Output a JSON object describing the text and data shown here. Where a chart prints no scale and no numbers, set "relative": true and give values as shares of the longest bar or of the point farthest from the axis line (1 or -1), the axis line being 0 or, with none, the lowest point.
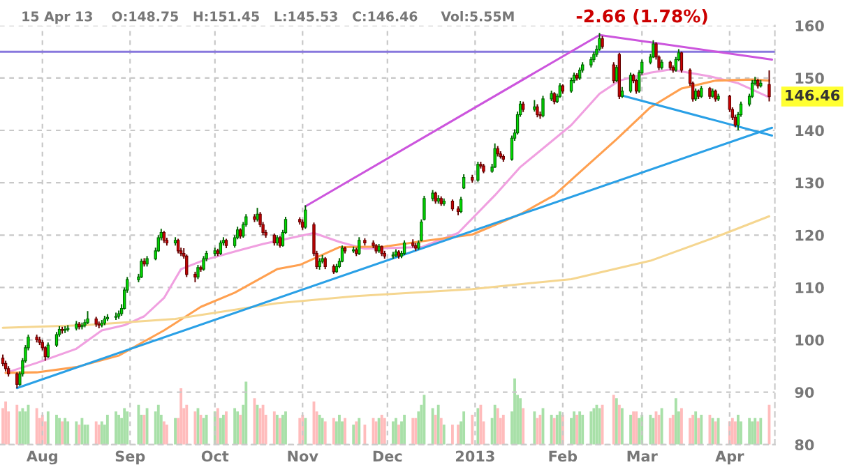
{
  "chart_data": [
    {
      "type": "candlestick",
      "title": "15 Apr 13    O:148.75   H:151.45   L:145.53   C:146.46     Vol:5.55M",
      "subtitle": "-2.66 (1.78%)",
      "x": [
        "2012-07-18",
        "2012-07-19",
        "2012-07-20",
        "2012-07-23",
        "2012-07-24",
        "2012-07-25",
        "2012-07-26",
        "2012-07-27",
        "2012-07-30",
        "2012-07-31",
        "2012-08-01",
        "2012-08-02",
        "2012-08-03",
        "2012-08-06",
        "2012-08-07",
        "2012-08-08",
        "2012-08-09",
        "2012-08-10",
        "2012-08-13",
        "2012-08-14",
        "2012-08-15",
        "2012-08-16",
        "2012-08-17",
        "2012-08-20",
        "2012-08-21",
        "2012-08-22",
        "2012-08-23",
        "2012-08-24",
        "2012-08-27",
        "2012-08-28",
        "2012-08-29",
        "2012-08-30",
        "2012-08-31",
        "2012-09-04",
        "2012-09-05",
        "2012-09-06",
        "2012-09-07",
        "2012-09-10",
        "2012-09-11",
        "2012-09-12",
        "2012-09-13",
        "2012-09-14",
        "2012-09-17",
        "2012-09-18",
        "2012-09-19",
        "2012-09-20",
        "2012-09-21",
        "2012-09-24",
        "2012-09-25",
        "2012-09-26",
        "2012-09-27",
        "2012-09-28",
        "2012-10-01",
        "2012-10-02",
        "2012-10-03",
        "2012-10-04",
        "2012-10-05",
        "2012-10-08",
        "2012-10-09",
        "2012-10-10",
        "2012-10-11",
        "2012-10-12",
        "2012-10-15",
        "2012-10-16",
        "2012-10-17",
        "2012-10-18",
        "2012-10-19",
        "2012-10-22",
        "2012-10-23",
        "2012-10-24",
        "2012-10-25",
        "2012-10-26",
        "2012-10-31",
        "2012-11-01",
        "2012-11-02",
        "2012-11-05",
        "2012-11-06",
        "2012-11-07",
        "2012-11-08",
        "2012-11-09",
        "2012-11-12",
        "2012-11-13",
        "2012-11-14",
        "2012-11-15",
        "2012-11-16",
        "2012-11-19",
        "2012-11-20",
        "2012-11-21",
        "2012-11-23",
        "2012-11-26",
        "2012-11-27",
        "2012-11-28",
        "2012-11-29",
        "2012-11-30",
        "2012-12-03",
        "2012-12-04",
        "2012-12-05",
        "2012-12-06",
        "2012-12-07",
        "2012-12-10",
        "2012-12-11",
        "2012-12-12",
        "2012-12-13",
        "2012-12-14",
        "2012-12-17",
        "2012-12-18",
        "2012-12-19",
        "2012-12-20",
        "2012-12-21",
        "2012-12-24",
        "2012-12-26",
        "2012-12-27",
        "2012-12-28",
        "2012-12-31",
        "2013-01-02",
        "2013-01-03",
        "2013-01-04",
        "2013-01-07",
        "2013-01-08",
        "2013-01-09",
        "2013-01-10",
        "2013-01-11",
        "2013-01-14",
        "2013-01-15",
        "2013-01-16",
        "2013-01-17",
        "2013-01-18",
        "2013-01-22",
        "2013-01-23",
        "2013-01-24",
        "2013-01-25",
        "2013-01-28",
        "2013-01-29",
        "2013-01-30",
        "2013-01-31",
        "2013-02-01",
        "2013-02-04",
        "2013-02-05",
        "2013-02-06",
        "2013-02-07",
        "2013-02-08",
        "2013-02-11",
        "2013-02-12",
        "2013-02-13",
        "2013-02-14",
        "2013-02-15",
        "2013-02-19",
        "2013-02-20",
        "2013-02-21",
        "2013-02-22",
        "2013-02-25",
        "2013-02-26",
        "2013-02-27",
        "2013-02-28",
        "2013-03-01",
        "2013-03-04",
        "2013-03-05",
        "2013-03-06",
        "2013-03-07",
        "2013-03-08",
        "2013-03-11",
        "2013-03-12",
        "2013-03-13",
        "2013-03-14",
        "2013-03-15",
        "2013-03-18",
        "2013-03-19",
        "2013-03-20",
        "2013-03-21",
        "2013-03-22",
        "2013-03-25",
        "2013-03-26",
        "2013-03-27",
        "2013-03-28",
        "2013-04-01",
        "2013-04-02",
        "2013-04-03",
        "2013-04-04",
        "2013-04-05",
        "2013-04-08",
        "2013-04-09",
        "2013-04-10",
        "2013-04-11",
        "2013-04-12",
        "2013-04-15"
      ],
      "ohlc": [
        [
          96.5,
          97.2,
          95,
          95.5
        ],
        [
          95.5,
          96,
          94,
          94.5
        ],
        [
          94.5,
          95,
          93,
          93.5
        ],
        [
          93.5,
          93.8,
          90.8,
          91.5
        ],
        [
          91.5,
          94,
          91.2,
          93.5
        ],
        [
          93.5,
          96.5,
          93,
          96
        ],
        [
          96,
          99,
          95.6,
          98.5
        ],
        [
          98.5,
          101,
          98,
          100.5
        ],
        [
          100.5,
          101,
          99.5,
          100
        ],
        [
          100,
          100.6,
          99,
          99.5
        ],
        [
          99.5,
          100,
          98,
          98.5
        ],
        [
          98.5,
          98.8,
          96,
          96.8
        ],
        [
          96.8,
          99.5,
          96.5,
          99
        ],
        [
          99,
          101.5,
          98.6,
          101
        ],
        [
          101,
          102.6,
          100.6,
          102
        ],
        [
          102,
          102.5,
          101.2,
          101.8
        ],
        [
          101.8,
          102.6,
          101.3,
          102
        ],
        [
          102,
          102.8,
          101.6,
          102.2
        ],
        [
          102.2,
          103.6,
          101.8,
          103
        ],
        [
          103,
          103.4,
          102,
          102.5
        ],
        [
          102.5,
          103.3,
          102,
          102.8
        ],
        [
          102.8,
          103.9,
          102.4,
          103.3
        ],
        [
          103.3,
          105.5,
          103,
          104
        ],
        [
          104,
          104.4,
          102.5,
          103
        ],
        [
          103,
          103.5,
          102.2,
          102.8
        ],
        [
          102.8,
          103.8,
          102.4,
          103.2
        ],
        [
          103.2,
          104.6,
          102.8,
          104
        ],
        [
          104,
          104.9,
          103.6,
          104.3
        ],
        [
          104.3,
          105.2,
          103.8,
          104.5
        ],
        [
          104.5,
          105.6,
          104,
          105
        ],
        [
          105,
          106.8,
          104.6,
          106
        ],
        [
          106,
          110,
          105.8,
          109.5
        ],
        [
          109.5,
          112,
          109,
          111.5
        ],
        [
          111.5,
          112.6,
          111,
          112
        ],
        [
          112,
          115.5,
          111.8,
          115
        ],
        [
          115,
          115.6,
          114,
          114.5
        ],
        [
          114.5,
          116,
          114,
          115.5
        ],
        [
          115.5,
          117.6,
          115.2,
          117
        ],
        [
          117,
          120,
          116.8,
          119.5
        ],
        [
          119.5,
          121.2,
          119,
          120.5
        ],
        [
          120.5,
          120.8,
          118.5,
          119
        ],
        [
          119,
          119.5,
          118,
          118.5
        ],
        [
          118.5,
          119.6,
          118,
          119
        ],
        [
          119,
          119.3,
          116.5,
          117
        ],
        [
          117,
          117.6,
          116,
          116.5
        ],
        [
          116.5,
          117.5,
          115.5,
          116
        ],
        [
          116,
          116.3,
          112,
          112.5
        ],
        [
          112.5,
          113,
          111,
          112
        ],
        [
          112,
          114.3,
          111.6,
          113.8
        ],
        [
          113.8,
          114.2,
          113,
          113.5
        ],
        [
          113.5,
          116,
          113.2,
          115.5
        ],
        [
          115.5,
          117,
          115,
          116.5
        ],
        [
          116.5,
          117.6,
          116,
          117
        ],
        [
          117,
          117.4,
          116,
          116.5
        ],
        [
          116.5,
          119,
          116.2,
          118.5
        ],
        [
          118.5,
          119.6,
          118,
          119
        ],
        [
          119,
          119.3,
          117.5,
          118
        ],
        [
          118,
          120,
          117.6,
          119.5
        ],
        [
          119.5,
          121.6,
          119.2,
          121
        ],
        [
          121,
          121.3,
          119.3,
          119.8
        ],
        [
          119.8,
          122.5,
          119.5,
          122
        ],
        [
          122,
          124,
          121.6,
          123.5
        ],
        [
          123.5,
          124,
          122.5,
          123
        ],
        [
          123,
          125.2,
          122.6,
          124
        ],
        [
          124,
          124.4,
          121.5,
          122
        ],
        [
          122,
          122.5,
          120,
          120.5
        ],
        [
          120.5,
          121,
          119.5,
          120
        ],
        [
          120,
          120.3,
          118,
          118.5
        ],
        [
          118.5,
          120,
          118,
          119.5
        ],
        [
          119.5,
          119.8,
          117.6,
          118
        ],
        [
          118,
          121,
          117.8,
          120.5
        ],
        [
          120.5,
          123.5,
          120.2,
          123
        ],
        [
          123,
          123.4,
          122,
          122.5
        ],
        [
          122.5,
          123,
          121,
          121.5
        ],
        [
          121.5,
          125.7,
          121.2,
          124.8
        ],
        [
          122,
          122.4,
          116,
          116.5
        ],
        [
          116.5,
          117,
          113.5,
          114
        ],
        [
          114,
          115.6,
          113.4,
          115
        ],
        [
          115,
          116.2,
          114.6,
          115.5
        ],
        [
          115.5,
          115.8,
          113.5,
          114
        ],
        [
          114,
          114.4,
          112.6,
          113
        ],
        [
          113,
          114.5,
          112.8,
          114
        ],
        [
          114,
          115.6,
          113.7,
          115
        ],
        [
          115,
          118,
          114.8,
          117.5
        ],
        [
          117.5,
          117.8,
          116.5,
          117
        ],
        [
          117,
          117.8,
          116.6,
          117.2
        ],
        [
          117.2,
          117.6,
          116,
          116.5
        ],
        [
          116.5,
          119.6,
          116.2,
          119
        ],
        [
          119,
          119.4,
          118,
          118.5
        ],
        [
          118.5,
          119,
          117.5,
          118
        ],
        [
          118,
          118.3,
          116.5,
          117
        ],
        [
          117,
          118.3,
          116.6,
          117.8
        ],
        [
          117.8,
          118,
          116,
          116.5
        ],
        [
          116.5,
          117,
          115.5,
          116
        ],
        [
          116,
          116.8,
          115.5,
          116.2
        ],
        [
          116.2,
          117.3,
          115.8,
          116.8
        ],
        [
          116.8,
          117.1,
          115.5,
          116
        ],
        [
          116,
          117,
          115.6,
          116.5
        ],
        [
          116.5,
          119,
          116.2,
          118.5
        ],
        [
          118.5,
          119.2,
          117.6,
          118
        ],
        [
          118,
          118.5,
          117,
          117.5
        ],
        [
          117.5,
          119,
          117.2,
          118.5
        ],
        [
          119,
          123,
          118.8,
          122.5
        ],
        [
          123,
          127.5,
          122.8,
          127
        ],
        [
          127,
          128.6,
          126.5,
          128
        ],
        [
          128,
          128.3,
          126,
          126.5
        ],
        [
          126.5,
          127.6,
          126,
          127
        ],
        [
          127,
          127.4,
          125.6,
          126
        ],
        [
          126,
          127,
          125.6,
          126.5
        ],
        [
          126.5,
          126.8,
          124.6,
          125
        ],
        [
          125,
          125.5,
          123.8,
          124.5
        ],
        [
          124.5,
          127.3,
          124.2,
          126.8
        ],
        [
          129,
          131.6,
          128.8,
          131
        ],
        [
          131,
          131.5,
          130,
          130.5
        ],
        [
          130.5,
          134,
          130.2,
          133.5
        ],
        [
          133.5,
          134,
          132.7,
          133.2
        ],
        [
          133.2,
          133.6,
          131.8,
          132.2
        ],
        [
          132.2,
          133.6,
          131.9,
          133
        ],
        [
          133,
          137.5,
          132.8,
          136.5
        ],
        [
          136.5,
          137,
          135,
          135.5
        ],
        [
          135.5,
          136,
          134.6,
          135
        ],
        [
          135,
          135.4,
          134,
          134.5
        ],
        [
          134.5,
          139,
          134.2,
          138.5
        ],
        [
          138.5,
          140.2,
          138,
          139.5
        ],
        [
          139.5,
          143.6,
          139.2,
          143
        ],
        [
          143,
          145.6,
          142.6,
          145
        ],
        [
          145,
          145.5,
          143.5,
          144
        ],
        [
          144,
          145.8,
          143.6,
          144.5
        ],
        [
          144.5,
          145,
          142.5,
          143
        ],
        [
          143,
          143.6,
          142.2,
          142.8
        ],
        [
          142.8,
          146.6,
          142.5,
          146
        ],
        [
          146,
          147.6,
          145.6,
          147
        ],
        [
          147,
          147.3,
          145,
          145.5
        ],
        [
          145.5,
          147,
          145.2,
          146.5
        ],
        [
          146.5,
          149,
          146.2,
          148.5
        ],
        [
          148.5,
          148.8,
          147,
          147.5
        ],
        [
          147.5,
          150,
          147.2,
          149.5
        ],
        [
          149.5,
          151,
          149,
          150.5
        ],
        [
          150.5,
          150.9,
          149.5,
          150
        ],
        [
          150,
          152,
          149.6,
          151.5
        ],
        [
          151.5,
          153,
          151,
          152.5
        ],
        [
          152.5,
          154,
          152,
          153.5
        ],
        [
          153.5,
          155,
          153,
          154.5
        ],
        [
          154.5,
          156.2,
          154,
          155.5
        ],
        [
          155.5,
          158.6,
          155.2,
          157.5
        ],
        [
          157.5,
          158,
          155.6,
          156
        ],
        [
          152.5,
          153,
          149,
          149.5
        ],
        [
          149.5,
          152.5,
          149.2,
          152
        ],
        [
          154.5,
          154.8,
          146,
          146.5
        ],
        [
          146.5,
          148.3,
          146.2,
          147.5
        ],
        [
          147.5,
          151,
          147.2,
          150.5
        ],
        [
          150.5,
          150.8,
          149,
          149.5
        ],
        [
          149.5,
          149.8,
          147,
          147.5
        ],
        [
          147.5,
          151.5,
          147.2,
          151
        ],
        [
          151,
          153.5,
          150.6,
          153
        ],
        [
          153,
          154.6,
          152.6,
          154
        ],
        [
          154,
          157.2,
          153.8,
          156.5
        ],
        [
          156.5,
          156.8,
          153.5,
          154
        ],
        [
          154,
          154.3,
          151.5,
          152
        ],
        [
          152,
          153.5,
          151.6,
          153
        ],
        [
          153,
          153.3,
          151.5,
          152
        ],
        [
          152,
          152.4,
          151,
          151.5
        ],
        [
          151.5,
          154,
          151.2,
          153.5
        ],
        [
          153.5,
          155.5,
          153.2,
          154.8
        ],
        [
          154.8,
          155,
          151,
          151.5
        ],
        [
          151.5,
          151.8,
          148.5,
          149
        ],
        [
          149,
          149.3,
          145.5,
          146
        ],
        [
          146,
          148,
          145.6,
          147.5
        ],
        [
          147.5,
          147.8,
          146,
          146.5
        ],
        [
          146.5,
          148.5,
          146.2,
          148
        ],
        [
          148,
          148.3,
          146,
          146.5
        ],
        [
          146.5,
          148,
          146.2,
          147.5
        ],
        [
          147.5,
          147.8,
          145.5,
          146
        ],
        [
          146,
          147,
          145.6,
          146.5
        ],
        [
          146.5,
          146.8,
          143.5,
          144
        ],
        [
          144,
          144.4,
          142,
          142.5
        ],
        [
          142.5,
          143,
          140.6,
          141
        ],
        [
          141,
          143.5,
          140,
          143
        ],
        [
          143,
          145.5,
          142.6,
          145
        ],
        [
          145,
          147,
          144.6,
          146.5
        ],
        [
          146.5,
          149.6,
          146.2,
          149
        ],
        [
          149,
          150.2,
          148.6,
          149.5
        ],
        [
          149.5,
          149.8,
          148,
          148.5
        ],
        [
          148.5,
          149.6,
          148.2,
          149
        ],
        [
          148.75,
          151.45,
          145.53,
          146.46
        ]
      ],
      "series": [
        {
          "type": "line",
          "color": "#f0a0e0",
          "x": [
            "2012-07-19",
            "2012-07-30",
            "2012-08-13",
            "2012-08-22",
            "2012-08-30",
            "2012-09-06",
            "2012-09-13",
            "2012-09-19",
            "2012-09-27",
            "2012-10-09",
            "2012-10-18",
            "2012-11-05",
            "2012-11-14",
            "2012-11-23",
            "2012-12-13",
            "2012-12-26",
            "2013-01-08",
            "2013-01-17",
            "2013-02-04",
            "2013-02-14",
            "2013-02-21",
            "2013-03-04",
            "2013-03-11",
            "2013-03-25",
            "2013-04-04",
            "2013-04-15"
          ],
          "values": [
            93.7,
            95.6,
            98.3,
            101.8,
            102.8,
            104.5,
            108,
            113.5,
            115.2,
            117,
            118.3,
            120.4,
            118.7,
            117.4,
            117.7,
            120.4,
            127.6,
            133,
            141,
            147,
            149.5,
            151,
            151.6,
            150.3,
            149,
            146.3
          ]
        },
        {
          "type": "line",
          "color": "#ffa050",
          "x": [
            "2012-07-19",
            "2012-07-30",
            "2012-08-13",
            "2012-08-28",
            "2012-09-13",
            "2012-09-26",
            "2012-10-08",
            "2012-10-23",
            "2012-10-31",
            "2012-11-14",
            "2012-11-30",
            "2012-12-13",
            "2012-12-31",
            "2013-01-17",
            "2013-01-29",
            "2013-02-07",
            "2013-02-20",
            "2013-03-04",
            "2013-03-15",
            "2013-03-27",
            "2013-04-09",
            "2013-04-15"
          ],
          "values": [
            93.7,
            93.8,
            94.8,
            97,
            101.8,
            106.3,
            109,
            113.5,
            114.3,
            117.7,
            117.8,
            118.8,
            120.1,
            124,
            127.6,
            132,
            138.3,
            144.4,
            148,
            149.5,
            149.7,
            149.5
          ]
        },
        {
          "type": "line",
          "color": "#f5d690",
          "x": [
            "2012-07-18",
            "2012-08-16",
            "2012-09-17",
            "2012-10-23",
            "2012-11-21",
            "2012-12-31",
            "2013-02-04",
            "2013-03-04",
            "2013-03-27",
            "2013-04-15"
          ],
          "values": [
            102.3,
            102.8,
            104,
            107,
            108.4,
            109.7,
            111.6,
            115.1,
            119.6,
            123.6
          ]
        },
        {
          "type": "line",
          "color": "#cc55dd",
          "x": [
            "2012-11-02",
            "2013-02-14"
          ],
          "values": [
            125.5,
            158.2
          ]
        },
        {
          "type": "line",
          "color": "#cc55dd",
          "x": [
            "2013-02-14",
            "2013-04-16"
          ],
          "values": [
            158.2,
            153.5
          ]
        },
        {
          "type": "line",
          "color": "#2aa0e6",
          "x": [
            "2012-07-23",
            "2013-04-16"
          ],
          "values": [
            90.8,
            140.5
          ]
        },
        {
          "type": "line",
          "color": "#2aa0e6",
          "x": [
            "2013-02-21",
            "2013-04-16"
          ],
          "values": [
            146.8,
            139
          ]
        }
      ],
      "ref_lines": [
        {
          "axis": "y",
          "value": 155,
          "color": "#8877dd"
        }
      ],
      "annotations": [
        {
          "text": "146.46",
          "x": "2013-04-15",
          "y": 146.46
        }
      ],
      "xlim": [
        "2012-07-17",
        "2013-04-17"
      ],
      "xticks": [
        {
          "value": "2012-08-01",
          "label": "Aug"
        },
        {
          "value": "2012-09-01",
          "label": "Sep"
        },
        {
          "value": "2012-10-01",
          "label": "Oct"
        },
        {
          "value": "2012-11-01",
          "label": "Nov"
        },
        {
          "value": "2012-12-01",
          "label": "Dec"
        },
        {
          "value": "2013-01-01",
          "label": "2013"
        },
        {
          "value": "2013-02-01",
          "label": "Feb"
        },
        {
          "value": "2013-03-01",
          "label": "Mar"
        },
        {
          "value": "2013-04-01",
          "label": "Apr"
        }
      ],
      "ylim": [
        80,
        160
      ],
      "yticks": [
        80,
        90,
        100,
        110,
        120,
        130,
        140,
        150,
        160
      ],
      "grid": true
    },
    {
      "type": "bar",
      "relative": true,
      "tick_labels": false,
      "xlim": [
        "2012-07-17",
        "2013-04-17"
      ],
      "x": [
        "2012-07-18",
        "2012-07-19",
        "2012-07-20",
        "2012-07-23",
        "2012-07-24",
        "2012-07-25",
        "2012-07-26",
        "2012-07-27",
        "2012-07-30",
        "2012-07-31",
        "2012-08-01",
        "2012-08-02",
        "2012-08-03",
        "2012-08-06",
        "2012-08-07",
        "2012-08-08",
        "2012-08-09",
        "2012-08-10",
        "2012-08-13",
        "2012-08-14",
        "2012-08-15",
        "2012-08-16",
        "2012-08-17",
        "2012-08-20",
        "2012-08-21",
        "2012-08-22",
        "2012-08-23",
        "2012-08-24",
        "2012-08-27",
        "2012-08-28",
        "2012-08-29",
        "2012-08-30",
        "2012-08-31",
        "2012-09-04",
        "2012-09-05",
        "2012-09-06",
        "2012-09-07",
        "2012-09-10",
        "2012-09-11",
        "2012-09-12",
        "2012-09-13",
        "2012-09-14",
        "2012-09-17",
        "2012-09-18",
        "2012-09-19",
        "2012-09-20",
        "2012-09-21",
        "2012-09-24",
        "2012-09-25",
        "2012-09-26",
        "2012-09-27",
        "2012-09-28",
        "2012-10-01",
        "2012-10-02",
        "2012-10-03",
        "2012-10-04",
        "2012-10-05",
        "2012-10-08",
        "2012-10-09",
        "2012-10-10",
        "2012-10-11",
        "2012-10-12",
        "2012-10-15",
        "2012-10-16",
        "2012-10-17",
        "2012-10-18",
        "2012-10-19",
        "2012-10-22",
        "2012-10-23",
        "2012-10-24",
        "2012-10-25",
        "2012-10-26",
        "2012-10-31",
        "2012-11-01",
        "2012-11-02",
        "2012-11-05",
        "2012-11-06",
        "2012-11-07",
        "2012-11-08",
        "2012-11-09",
        "2012-11-12",
        "2012-11-13",
        "2012-11-14",
        "2012-11-15",
        "2012-11-16",
        "2012-11-19",
        "2012-11-20",
        "2012-11-21",
        "2012-11-23",
        "2012-11-26",
        "2012-11-27",
        "2012-11-28",
        "2012-11-29",
        "2012-11-30",
        "2012-12-03",
        "2012-12-04",
        "2012-12-05",
        "2012-12-06",
        "2012-12-07",
        "2012-12-10",
        "2012-12-11",
        "2012-12-12",
        "2012-12-13",
        "2012-12-14",
        "2012-12-17",
        "2012-12-18",
        "2012-12-19",
        "2012-12-20",
        "2012-12-21",
        "2012-12-24",
        "2012-12-26",
        "2012-12-27",
        "2012-12-28",
        "2012-12-31",
        "2013-01-02",
        "2013-01-03",
        "2013-01-04",
        "2013-01-07",
        "2013-01-08",
        "2013-01-09",
        "2013-01-10",
        "2013-01-11",
        "2013-01-14",
        "2013-01-15",
        "2013-01-16",
        "2013-01-17",
        "2013-01-18",
        "2013-01-22",
        "2013-01-23",
        "2013-01-24",
        "2013-01-25",
        "2013-01-28",
        "2013-01-29",
        "2013-01-30",
        "2013-01-31",
        "2013-02-01",
        "2013-02-04",
        "2013-02-05",
        "2013-02-06",
        "2013-02-07",
        "2013-02-08",
        "2013-02-11",
        "2013-02-12",
        "2013-02-13",
        "2013-02-14",
        "2013-02-15",
        "2013-02-19",
        "2013-02-20",
        "2013-02-21",
        "2013-02-22",
        "2013-02-25",
        "2013-02-26",
        "2013-02-27",
        "2013-02-28",
        "2013-03-01",
        "2013-03-04",
        "2013-03-05",
        "2013-03-06",
        "2013-03-07",
        "2013-03-08",
        "2013-03-11",
        "2013-03-12",
        "2013-03-13",
        "2013-03-14",
        "2013-03-15",
        "2013-03-18",
        "2013-03-19",
        "2013-03-20",
        "2013-03-21",
        "2013-03-22",
        "2013-03-25",
        "2013-03-26",
        "2013-03-27",
        "2013-03-28",
        "2013-04-01",
        "2013-04-02",
        "2013-04-03",
        "2013-04-04",
        "2013-04-05",
        "2013-04-08",
        "2013-04-09",
        "2013-04-10",
        "2013-04-11",
        "2013-04-12",
        "2013-04-15"
      ],
      "values": [
        0.55,
        0.65,
        0.5,
        0.6,
        0.5,
        0.55,
        0.5,
        0.6,
        0.55,
        0.4,
        0.45,
        0.35,
        0.5,
        0.45,
        0.4,
        0.35,
        0.4,
        0.35,
        0.35,
        0.3,
        0.4,
        0.3,
        0.3,
        0.35,
        0.3,
        0.35,
        0.3,
        0.45,
        0.5,
        0.45,
        0.4,
        0.55,
        0.5,
        0.6,
        0.45,
        0.45,
        0.55,
        0.5,
        0.6,
        0.45,
        0.35,
        0.3,
        0.4,
        0.4,
        0.85,
        0.55,
        0.6,
        0.5,
        0.55,
        0.45,
        0.4,
        0.45,
        0.5,
        0.55,
        0.4,
        0.45,
        0.5,
        0.55,
        0.5,
        0.45,
        0.6,
        0.95,
        0.7,
        0.6,
        0.55,
        0.6,
        0.45,
        0.5,
        0.45,
        0.4,
        0.45,
        0.5,
        0.4,
        0.45,
        0.4,
        0.65,
        0.5,
        0.45,
        0.4,
        0.35,
        0.4,
        0.35,
        0.45,
        0.35,
        0.4,
        0.3,
        0.35,
        0.4,
        0.3,
        0.4,
        0.35,
        0.4,
        0.45,
        0.4,
        0.35,
        0.4,
        0.3,
        0.35,
        0.45,
        0.4,
        0.4,
        0.5,
        0.6,
        0.75,
        0.55,
        0.45,
        0.6,
        0.4,
        0.3,
        0.3,
        0.3,
        0.35,
        0.5,
        0.45,
        0.55,
        0.6,
        0.35,
        0.4,
        0.6,
        0.55,
        0.4,
        0.45,
        0.5,
        1.0,
        0.75,
        0.7,
        0.55,
        0.5,
        0.4,
        0.45,
        0.55,
        0.45,
        0.4,
        0.45,
        0.5,
        0.45,
        0.4,
        0.5,
        0.45,
        0.5,
        0.45,
        0.5,
        0.55,
        0.6,
        0.55,
        0.6,
        0.75,
        0.7,
        0.6,
        0.55,
        0.45,
        0.5,
        0.5,
        0.4,
        0.45,
        0.45,
        0.4,
        0.5,
        0.45,
        0.55,
        0.4,
        0.45,
        0.7,
        0.5,
        0.55,
        0.4,
        0.45,
        0.5,
        0.4,
        0.45,
        0.45,
        0.4,
        0.35,
        0.4,
        0.35,
        0.4,
        0.35,
        0.45,
        0.35,
        0.4,
        0.35,
        0.4,
        0.35,
        0.4,
        0.6
      ],
      "colors": [
        "#ffbcbc",
        "#ffbcbc",
        "#ffbcbc",
        "#ffbcbc",
        "#a8e0a8",
        "#a8e0a8",
        "#a8e0a8",
        "#a8e0a8",
        "#ffbcbc",
        "#ffbcbc",
        "#ffbcbc",
        "#ffbcbc",
        "#a8e0a8",
        "#a8e0a8",
        "#a8e0a8",
        "#ffbcbc",
        "#a8e0a8",
        "#a8e0a8",
        "#a8e0a8",
        "#ffbcbc",
        "#a8e0a8",
        "#a8e0a8",
        "#a8e0a8",
        "#ffbcbc",
        "#ffbcbc",
        "#a8e0a8",
        "#a8e0a8",
        "#a8e0a8",
        "#a8e0a8",
        "#a8e0a8",
        "#a8e0a8",
        "#a8e0a8",
        "#a8e0a8",
        "#a8e0a8",
        "#a8e0a8",
        "#ffbcbc",
        "#a8e0a8",
        "#a8e0a8",
        "#a8e0a8",
        "#a8e0a8",
        "#ffbcbc",
        "#ffbcbc",
        "#a8e0a8",
        "#ffbcbc",
        "#ffbcbc",
        "#ffbcbc",
        "#ffbcbc",
        "#ffbcbc",
        "#a8e0a8",
        "#ffbcbc",
        "#a8e0a8",
        "#a8e0a8",
        "#a8e0a8",
        "#ffbcbc",
        "#a8e0a8",
        "#a8e0a8",
        "#ffbcbc",
        "#a8e0a8",
        "#a8e0a8",
        "#ffbcbc",
        "#a8e0a8",
        "#a8e0a8",
        "#ffbcbc",
        "#a8e0a8",
        "#ffbcbc",
        "#ffbcbc",
        "#ffbcbc",
        "#ffbcbc",
        "#a8e0a8",
        "#ffbcbc",
        "#a8e0a8",
        "#a8e0a8",
        "#ffbcbc",
        "#ffbcbc",
        "#a8e0a8",
        "#ffbcbc",
        "#ffbcbc",
        "#a8e0a8",
        "#a8e0a8",
        "#ffbcbc",
        "#ffbcbc",
        "#a8e0a8",
        "#a8e0a8",
        "#a8e0a8",
        "#ffbcbc",
        "#a8e0a8",
        "#ffbcbc",
        "#a8e0a8",
        "#ffbcbc",
        "#ffbcbc",
        "#ffbcbc",
        "#a8e0a8",
        "#ffbcbc",
        "#ffbcbc",
        "#a8e0a8",
        "#a8e0a8",
        "#ffbcbc",
        "#a8e0a8",
        "#a8e0a8",
        "#ffbcbc",
        "#ffbcbc",
        "#a8e0a8",
        "#a8e0a8",
        "#a8e0a8",
        "#a8e0a8",
        "#ffbcbc",
        "#a8e0a8",
        "#ffbcbc",
        "#a8e0a8",
        "#ffbcbc",
        "#ffbcbc",
        "#a8e0a8",
        "#a8e0a8",
        "#ffbcbc",
        "#a8e0a8",
        "#ffbcbc",
        "#ffbcbc",
        "#a8e0a8",
        "#a8e0a8",
        "#ffbcbc",
        "#ffbcbc",
        "#ffbcbc",
        "#a8e0a8",
        "#a8e0a8",
        "#a8e0a8",
        "#a8e0a8",
        "#ffbcbc",
        "#a8e0a8",
        "#ffbcbc",
        "#ffbcbc",
        "#a8e0a8",
        "#a8e0a8",
        "#ffbcbc",
        "#a8e0a8",
        "#a8e0a8",
        "#ffbcbc",
        "#a8e0a8",
        "#a8e0a8",
        "#ffbcbc",
        "#a8e0a8",
        "#a8e0a8",
        "#a8e0a8",
        "#a8e0a8",
        "#a8e0a8",
        "#a8e0a8",
        "#ffbcbc",
        "#ffbcbc",
        "#a8e0a8",
        "#ffbcbc",
        "#a8e0a8",
        "#a8e0a8",
        "#ffbcbc",
        "#ffbcbc",
        "#a8e0a8",
        "#a8e0a8",
        "#a8e0a8",
        "#a8e0a8",
        "#ffbcbc",
        "#ffbcbc",
        "#a8e0a8",
        "#ffbcbc",
        "#ffbcbc",
        "#a8e0a8",
        "#a8e0a8",
        "#ffbcbc",
        "#ffbcbc",
        "#ffbcbc",
        "#a8e0a8",
        "#ffbcbc",
        "#a8e0a8",
        "#ffbcbc",
        "#a8e0a8",
        "#ffbcbc",
        "#a8e0a8",
        "#ffbcbc",
        "#ffbcbc",
        "#ffbcbc",
        "#a8e0a8",
        "#a8e0a8",
        "#a8e0a8",
        "#a8e0a8",
        "#a8e0a8",
        "#ffbcbc",
        "#a8e0a8",
        "#ffbcbc"
      ]
    }
  ]
}
